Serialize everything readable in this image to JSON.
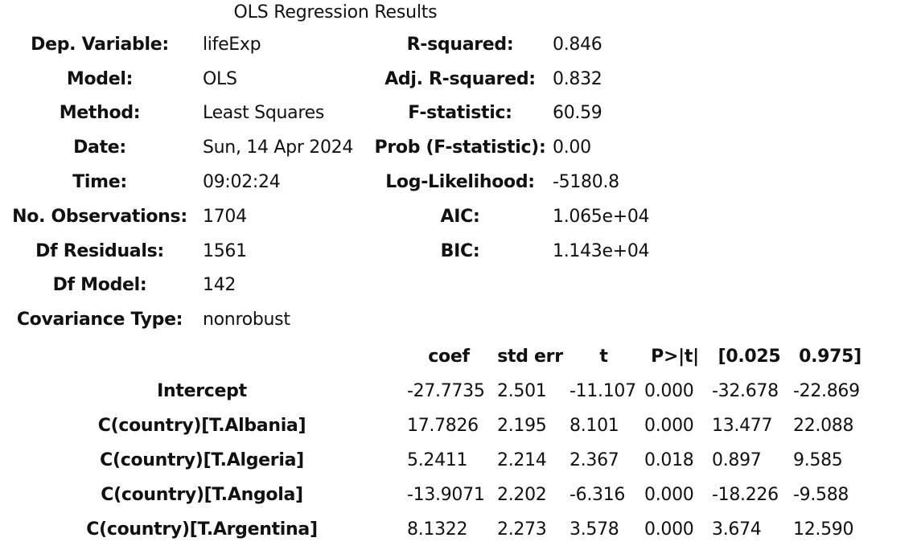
{
  "title": "OLS Regression Results",
  "summary": {
    "rows": [
      {
        "l1": "Dep. Variable:",
        "v1": "lifeExp",
        "l2": "R-squared:",
        "v2": "0.846"
      },
      {
        "l1": "Model:",
        "v1": "OLS",
        "l2": "Adj. R-squared:",
        "v2": "0.832"
      },
      {
        "l1": "Method:",
        "v1": "Least Squares",
        "l2": "F-statistic:",
        "v2": "60.59"
      },
      {
        "l1": "Date:",
        "v1": "Sun, 14 Apr 2024",
        "l2": "Prob (F-statistic):",
        "v2": "0.00"
      },
      {
        "l1": "Time:",
        "v1": "09:02:24",
        "l2": "Log-Likelihood:",
        "v2": "-5180.8"
      },
      {
        "l1": "No. Observations:",
        "v1": "1704",
        "l2": "AIC:",
        "v2": "1.065e+04"
      },
      {
        "l1": "Df Residuals:",
        "v1": "1561",
        "l2": "BIC:",
        "v2": "1.143e+04"
      },
      {
        "l1": "Df Model:",
        "v1": "142",
        "l2": "",
        "v2": ""
      },
      {
        "l1": "Covariance Type:",
        "v1": "nonrobust",
        "l2": "",
        "v2": ""
      }
    ]
  },
  "coefficients": {
    "headers": [
      "coef",
      "std err",
      "t",
      "P>|t|",
      "[0.025",
      "0.975]"
    ],
    "rows": [
      {
        "name": "Intercept",
        "values": [
          "-27.7735",
          "2.501",
          "-11.107",
          "0.000",
          "-32.678",
          "-22.869"
        ]
      },
      {
        "name": "C(country)[T.Albania]",
        "values": [
          "17.7826",
          "2.195",
          "8.101",
          "0.000",
          "13.477",
          "22.088"
        ]
      },
      {
        "name": "C(country)[T.Algeria]",
        "values": [
          "5.2411",
          "2.214",
          "2.367",
          "0.018",
          "0.897",
          "9.585"
        ]
      },
      {
        "name": "C(country)[T.Angola]",
        "values": [
          "-13.9071",
          "2.202",
          "-6.316",
          "0.000",
          "-18.226",
          "-9.588"
        ]
      },
      {
        "name": "C(country)[T.Argentina]",
        "values": [
          "8.1322",
          "2.273",
          "3.578",
          "0.000",
          "3.674",
          "12.590"
        ]
      }
    ]
  }
}
